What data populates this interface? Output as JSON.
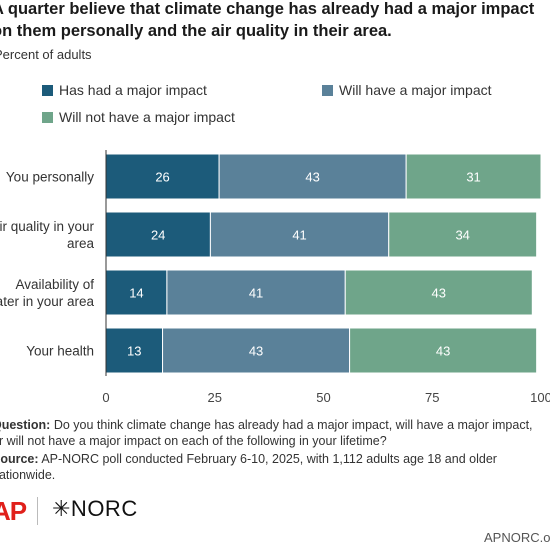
{
  "title_lines": [
    "A quarter believe that climate change has already had a major impact",
    "on them personally and the air quality in their area."
  ],
  "subtitle": "Percent of adults",
  "colors": {
    "major_impact": "#1c5b7a",
    "will_have": "#5a8199",
    "will_not": "#6fa58a",
    "axis": "#333333",
    "grid": "#dddddd"
  },
  "legend": [
    {
      "label": "Has had a major impact",
      "color": "#1c5b7a"
    },
    {
      "label": "Will have a major impact",
      "color": "#5a8199"
    },
    {
      "label": "Will not have a major impact",
      "color": "#6fa58a"
    }
  ],
  "chart_data": {
    "type": "bar",
    "orientation": "horizontal",
    "stacked": true,
    "categories": [
      [
        "You personally"
      ],
      [
        "Air quality in your",
        "area"
      ],
      [
        "Availability of",
        "water in your area"
      ],
      [
        "Your health"
      ]
    ],
    "series": [
      {
        "name": "Has had a major impact",
        "values": [
          26,
          24,
          14,
          13
        ]
      },
      {
        "name": "Will have a major impact",
        "values": [
          43,
          41,
          41,
          43
        ]
      },
      {
        "name": "Will not have a major impact",
        "values": [
          31,
          34,
          43,
          43
        ]
      }
    ],
    "xlim": [
      0,
      100
    ],
    "xticks": [
      0,
      25,
      50,
      75,
      100
    ],
    "grid": false,
    "legend_position": "top"
  },
  "question_label": "Question:",
  "question_text": " Do you think climate change has already had a major impact, will have a major impact,",
  "question_text2": "or will not have a major impact on each of the following in your lifetime?",
  "source_label": "Source:",
  "source_text": " AP-NORC poll conducted February 6-10, 2025, with 1,112 adults age 18 and older",
  "source_text2": "nationwide.",
  "logos": {
    "ap": "AP",
    "norc": "✳NORC"
  },
  "site": "APNORC.org"
}
